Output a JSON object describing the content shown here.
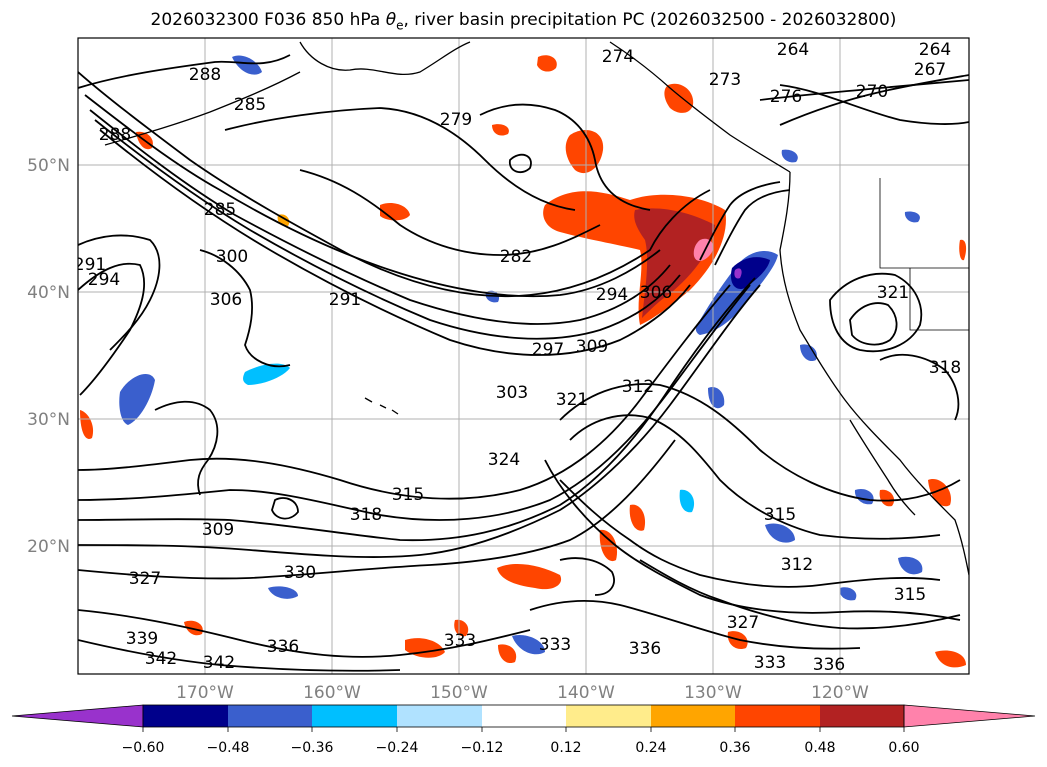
{
  "title": {
    "prefix": "2026032300 F036 850 hPa ",
    "theta": "θ",
    "sub": "e",
    "suffix": ", river basin precipitation PC (2026032500 - 2026032800)"
  },
  "map": {
    "lat_labels": [
      "50°N",
      "40°N",
      "30°N",
      "20°N"
    ],
    "lon_labels": [
      "170°W",
      "160°W",
      "150°W",
      "140°W",
      "130°W",
      "120°W"
    ]
  },
  "contour_labels": [
    "288",
    "285",
    "288",
    "285",
    "300",
    "306",
    "291",
    "294",
    "291",
    "282",
    "279",
    "274",
    "273",
    "276",
    "270",
    "264",
    "264",
    "267",
    "294",
    "306",
    "297",
    "309",
    "303",
    "321",
    "312",
    "324",
    "315",
    "318",
    "309",
    "330",
    "327",
    "339",
    "342",
    "342",
    "336",
    "333",
    "333",
    "336",
    "327",
    "333",
    "336",
    "312",
    "315",
    "315",
    "321",
    "318"
  ],
  "colorbar": {
    "levels": [
      "−0.60",
      "−0.48",
      "−0.36",
      "−0.24",
      "−0.12",
      "0.12",
      "0.24",
      "0.36",
      "0.48",
      "0.60"
    ],
    "colors": {
      "under": "#9932cc",
      "bins": [
        "#00008b",
        "#3a5fcd",
        "#00bfff",
        "#b0e2ff",
        "#ffffff",
        "#ffec8b",
        "#ffa500",
        "#ff4500",
        "#b22222"
      ],
      "over": "#ff82ab"
    }
  }
}
